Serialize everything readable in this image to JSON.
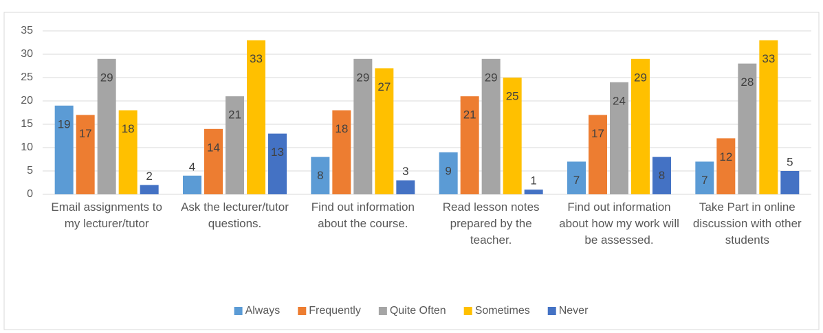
{
  "chart_data": {
    "type": "bar",
    "categories": [
      "Email assignments to my lecturer/tutor",
      "Ask the lecturer/tutor questions.",
      "Find out information about the course.",
      "Read lesson notes prepared by the teacher.",
      "Find out information about how my work will be assessed.",
      "Take Part in online discussion with other students"
    ],
    "series": [
      {
        "name": "Always",
        "color": "#5b9bd5",
        "values": [
          19,
          4,
          8,
          9,
          7,
          7
        ]
      },
      {
        "name": "Frequently",
        "color": "#ed7d31",
        "values": [
          17,
          14,
          18,
          21,
          17,
          12
        ]
      },
      {
        "name": "Quite Often",
        "color": "#a5a5a5",
        "values": [
          29,
          21,
          29,
          29,
          24,
          28
        ]
      },
      {
        "name": "Sometimes",
        "color": "#ffc000",
        "values": [
          18,
          33,
          27,
          25,
          29,
          33
        ]
      },
      {
        "name": "Never",
        "color": "#4472c4",
        "values": [
          2,
          13,
          3,
          1,
          8,
          5
        ]
      }
    ],
    "ylim": [
      0,
      35
    ],
    "yticks": [
      0,
      5,
      10,
      15,
      20,
      25,
      30,
      35
    ],
    "grid": true,
    "legend": "bottom"
  }
}
